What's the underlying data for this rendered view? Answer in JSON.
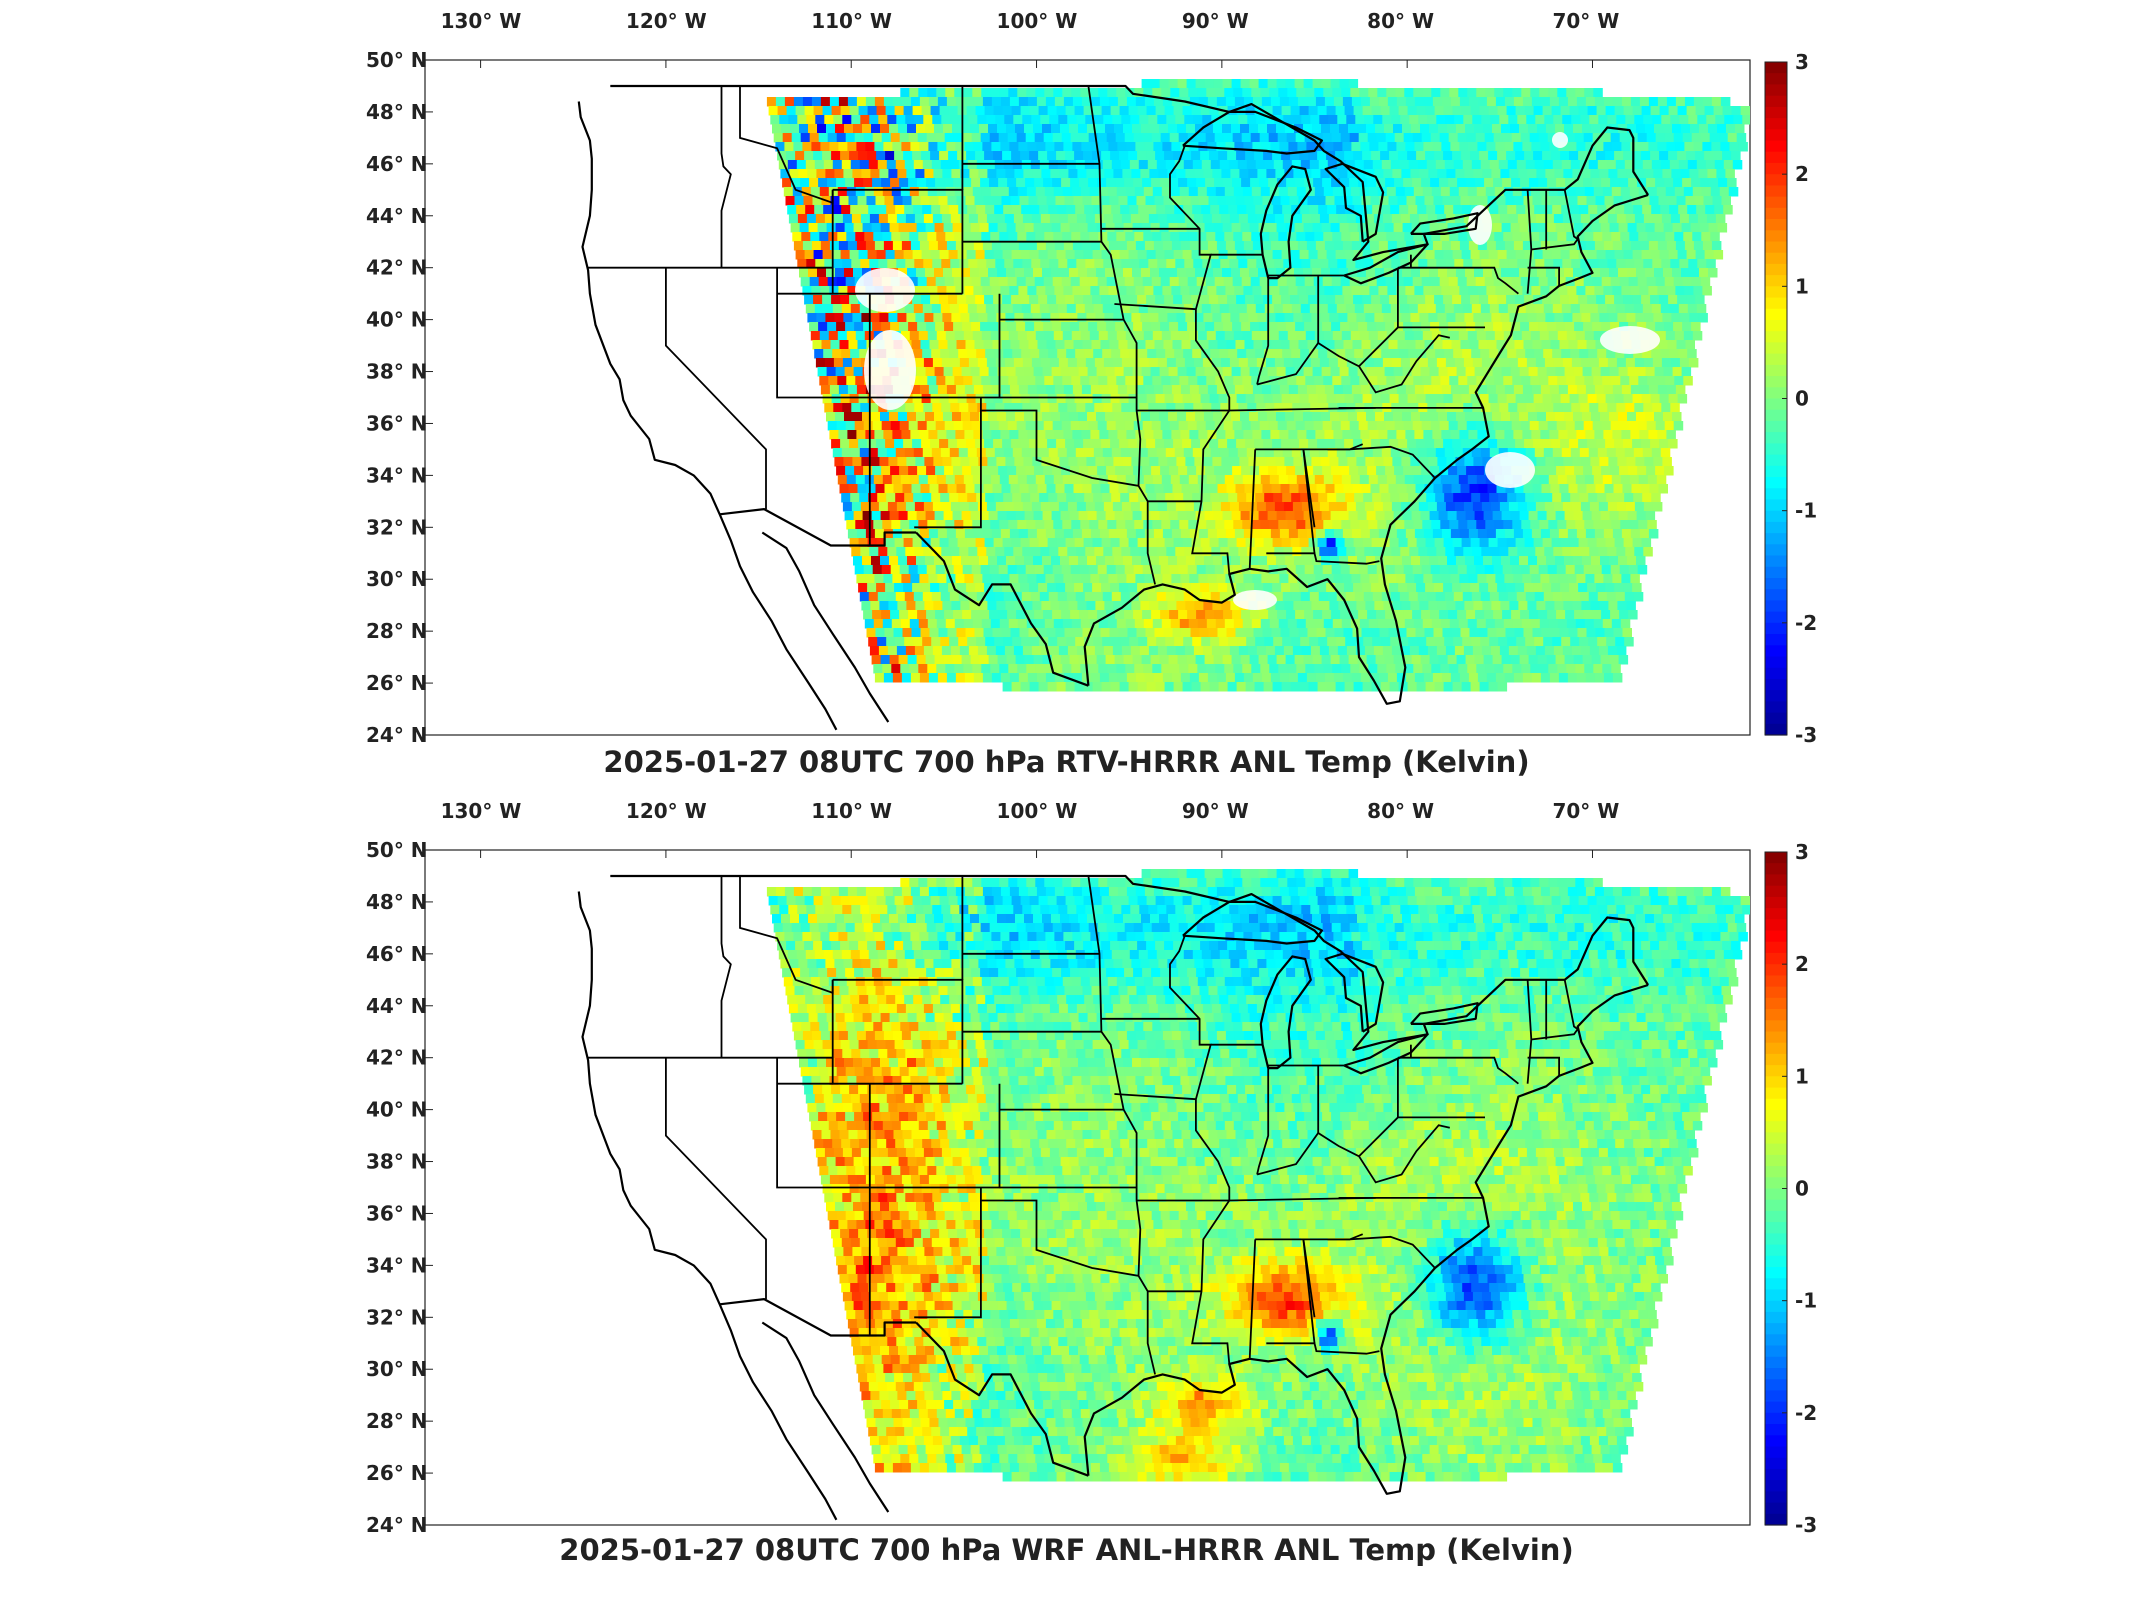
{
  "panels": [
    {
      "title": "2025-01-27 08UTC 700 hPa RTV-HRRR ANL Temp (Kelvin)",
      "colorbar_ticks": [
        "3",
        "2",
        "1",
        "0",
        "-1",
        "-2",
        "-3"
      ],
      "variant": "rtv"
    },
    {
      "title": "2025-01-27 08UTC 700 hPa WRF ANL-HRRR ANL Temp (Kelvin)",
      "colorbar_ticks": [
        "3",
        "2",
        "1",
        "0",
        "-1",
        "-2",
        "-3"
      ],
      "variant": "wrf"
    }
  ],
  "axes": {
    "lon_ticks": [
      "130° W",
      "120° W",
      "110° W",
      "100° W",
      "90° W",
      "80° W",
      "70° W"
    ],
    "lat_ticks": [
      "50° N",
      "48° N",
      "46° N",
      "44° N",
      "42° N",
      "40° N",
      "38° N",
      "36° N",
      "34° N",
      "32° N",
      "30° N",
      "28° N",
      "26° N",
      "24° N"
    ]
  },
  "colormap": [
    "#00008f",
    "#0000ff",
    "#0080ff",
    "#00ffff",
    "#80ff80",
    "#ffff00",
    "#ff8000",
    "#ff0000",
    "#800000"
  ],
  "colorbar_range": [
    -3,
    3
  ]
}
